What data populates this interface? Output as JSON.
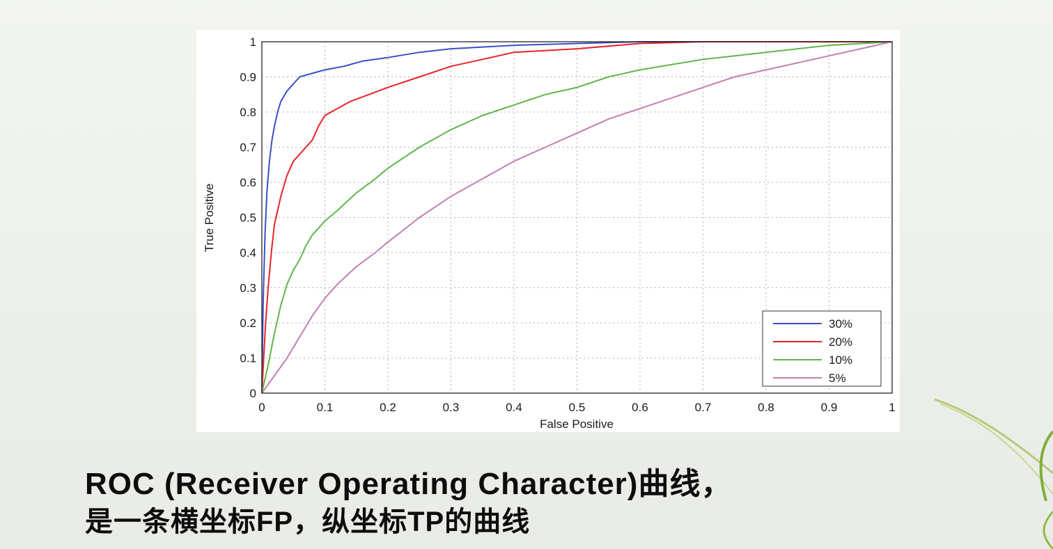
{
  "caption": {
    "line1": "ROC (Receiver Operating Character)曲线，",
    "line2": "是一条横坐标FP，纵坐标TP的曲线"
  },
  "colors": {
    "background": "#eef1ec",
    "series_30": "#3b4fc4",
    "series_20": "#e8232a",
    "series_10": "#5fb54a",
    "series_5": "#c27fb4",
    "grid": "#b0b0b0"
  },
  "chart_data": {
    "type": "line",
    "title": "",
    "xlabel": "False Positive",
    "ylabel": "True Positive",
    "xlim": [
      0,
      1
    ],
    "ylim": [
      0,
      1
    ],
    "xticks": [
      "0",
      "0.1",
      "0.2",
      "0.3",
      "0.4",
      "0.5",
      "0.6",
      "0.7",
      "0.8",
      "0.9",
      "1"
    ],
    "yticks": [
      "0",
      "0.1",
      "0.2",
      "0.3",
      "0.4",
      "0.5",
      "0.6",
      "0.7",
      "0.8",
      "0.9",
      "1"
    ],
    "grid": true,
    "legend_position": "bottom-right",
    "series": [
      {
        "name": "30%",
        "color": "#3b4fc4",
        "points": [
          [
            0,
            0
          ],
          [
            0.002,
            0.25
          ],
          [
            0.005,
            0.45
          ],
          [
            0.008,
            0.57
          ],
          [
            0.012,
            0.66
          ],
          [
            0.016,
            0.72
          ],
          [
            0.02,
            0.76
          ],
          [
            0.025,
            0.8
          ],
          [
            0.03,
            0.83
          ],
          [
            0.04,
            0.86
          ],
          [
            0.05,
            0.88
          ],
          [
            0.06,
            0.9
          ],
          [
            0.08,
            0.91
          ],
          [
            0.1,
            0.92
          ],
          [
            0.13,
            0.93
          ],
          [
            0.16,
            0.945
          ],
          [
            0.2,
            0.955
          ],
          [
            0.25,
            0.97
          ],
          [
            0.3,
            0.98
          ],
          [
            0.4,
            0.99
          ],
          [
            0.5,
            0.995
          ],
          [
            0.6,
            1
          ],
          [
            0.8,
            1
          ],
          [
            1,
            1
          ]
        ]
      },
      {
        "name": "20%",
        "color": "#e8232a",
        "points": [
          [
            0,
            0
          ],
          [
            0.003,
            0.1
          ],
          [
            0.006,
            0.2
          ],
          [
            0.01,
            0.3
          ],
          [
            0.015,
            0.4
          ],
          [
            0.02,
            0.48
          ],
          [
            0.03,
            0.56
          ],
          [
            0.04,
            0.62
          ],
          [
            0.05,
            0.66
          ],
          [
            0.06,
            0.68
          ],
          [
            0.07,
            0.7
          ],
          [
            0.08,
            0.72
          ],
          [
            0.09,
            0.76
          ],
          [
            0.1,
            0.79
          ],
          [
            0.12,
            0.81
          ],
          [
            0.14,
            0.83
          ],
          [
            0.17,
            0.85
          ],
          [
            0.2,
            0.87
          ],
          [
            0.25,
            0.9
          ],
          [
            0.3,
            0.93
          ],
          [
            0.35,
            0.95
          ],
          [
            0.4,
            0.97
          ],
          [
            0.5,
            0.98
          ],
          [
            0.6,
            0.995
          ],
          [
            0.7,
            1
          ],
          [
            1,
            1
          ]
        ]
      },
      {
        "name": "10%",
        "color": "#5fb54a",
        "points": [
          [
            0,
            0
          ],
          [
            0.01,
            0.08
          ],
          [
            0.02,
            0.17
          ],
          [
            0.03,
            0.25
          ],
          [
            0.04,
            0.31
          ],
          [
            0.05,
            0.35
          ],
          [
            0.06,
            0.38
          ],
          [
            0.07,
            0.42
          ],
          [
            0.08,
            0.45
          ],
          [
            0.1,
            0.49
          ],
          [
            0.12,
            0.52
          ],
          [
            0.15,
            0.57
          ],
          [
            0.18,
            0.61
          ],
          [
            0.2,
            0.64
          ],
          [
            0.25,
            0.7
          ],
          [
            0.3,
            0.75
          ],
          [
            0.35,
            0.79
          ],
          [
            0.4,
            0.82
          ],
          [
            0.45,
            0.85
          ],
          [
            0.5,
            0.87
          ],
          [
            0.55,
            0.9
          ],
          [
            0.6,
            0.92
          ],
          [
            0.7,
            0.95
          ],
          [
            0.8,
            0.97
          ],
          [
            0.9,
            0.99
          ],
          [
            1,
            1
          ]
        ]
      },
      {
        "name": "5%",
        "color": "#c27fb4",
        "points": [
          [
            0,
            0
          ],
          [
            0.02,
            0.05
          ],
          [
            0.04,
            0.1
          ],
          [
            0.06,
            0.16
          ],
          [
            0.08,
            0.22
          ],
          [
            0.1,
            0.27
          ],
          [
            0.12,
            0.31
          ],
          [
            0.15,
            0.36
          ],
          [
            0.18,
            0.4
          ],
          [
            0.2,
            0.43
          ],
          [
            0.25,
            0.5
          ],
          [
            0.3,
            0.56
          ],
          [
            0.35,
            0.61
          ],
          [
            0.4,
            0.66
          ],
          [
            0.45,
            0.7
          ],
          [
            0.5,
            0.74
          ],
          [
            0.55,
            0.78
          ],
          [
            0.6,
            0.81
          ],
          [
            0.65,
            0.84
          ],
          [
            0.7,
            0.87
          ],
          [
            0.75,
            0.9
          ],
          [
            0.8,
            0.92
          ],
          [
            0.85,
            0.94
          ],
          [
            0.9,
            0.96
          ],
          [
            0.95,
            0.98
          ],
          [
            1,
            1
          ]
        ]
      }
    ]
  }
}
